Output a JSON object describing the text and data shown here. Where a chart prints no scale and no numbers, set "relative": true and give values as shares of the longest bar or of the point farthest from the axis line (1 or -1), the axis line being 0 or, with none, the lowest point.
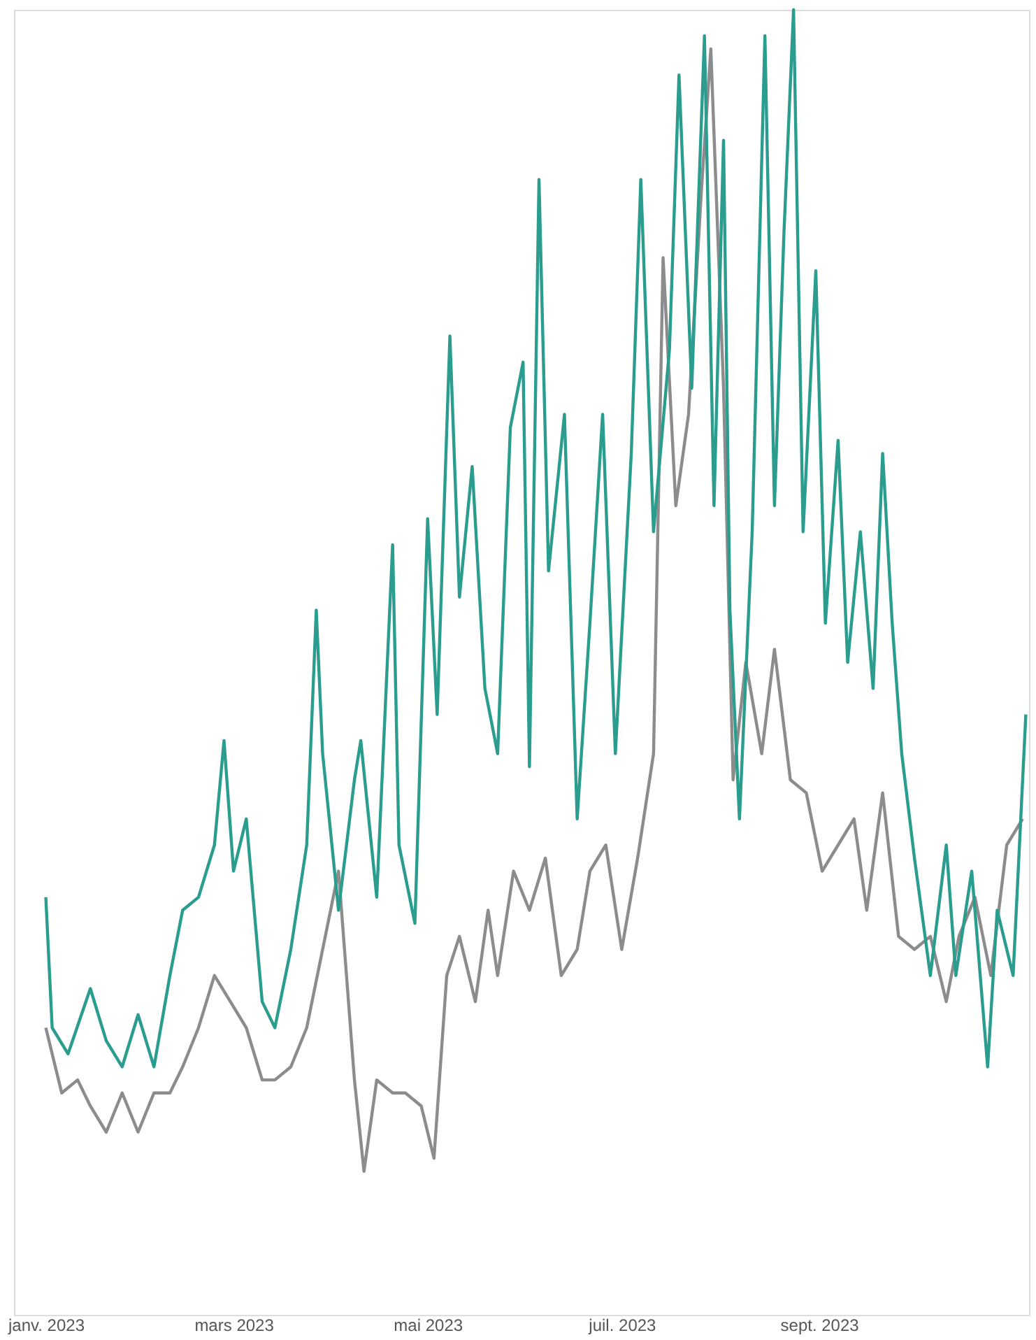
{
  "chart_data": {
    "type": "line",
    "relative": true,
    "line_style": "solid",
    "marker": "none",
    "grid": false,
    "xlim": [
      "2022-12-22",
      "2023-11-06"
    ],
    "xticks": [
      {
        "value": "2023-01-01",
        "label": "janv. 2023"
      },
      {
        "value": "2023-03-01",
        "label": "mars 2023"
      },
      {
        "value": "2023-05-01",
        "label": "mai 2023"
      },
      {
        "value": "2023-07-01",
        "label": "juil. 2023"
      },
      {
        "value": "2023-09-01",
        "label": "sept. 2023"
      }
    ],
    "series": [
      {
        "color": "#8c8c8c",
        "x": [
          "2023-01-01",
          "2023-01-06",
          "2023-01-11",
          "2023-01-15",
          "2023-01-20",
          "2023-01-25",
          "2023-01-30",
          "2023-02-04",
          "2023-02-09",
          "2023-02-13",
          "2023-02-18",
          "2023-02-23",
          "2023-02-28",
          "2023-03-05",
          "2023-03-10",
          "2023-03-14",
          "2023-03-19",
          "2023-03-24",
          "2023-03-29",
          "2023-04-03",
          "2023-04-08",
          "2023-04-11",
          "2023-04-15",
          "2023-04-20",
          "2023-04-24",
          "2023-04-29",
          "2023-05-03",
          "2023-05-07",
          "2023-05-11",
          "2023-05-16",
          "2023-05-20",
          "2023-05-23",
          "2023-05-28",
          "2023-06-02",
          "2023-06-07",
          "2023-06-12",
          "2023-06-17",
          "2023-06-21",
          "2023-06-26",
          "2023-07-01",
          "2023-07-06",
          "2023-07-11",
          "2023-07-14",
          "2023-07-18",
          "2023-07-22",
          "2023-07-26",
          "2023-07-29",
          "2023-08-02",
          "2023-08-05",
          "2023-08-09",
          "2023-08-14",
          "2023-08-18",
          "2023-08-23",
          "2023-08-28",
          "2023-09-02",
          "2023-09-07",
          "2023-09-12",
          "2023-09-16",
          "2023-09-21",
          "2023-09-26",
          "2023-10-01",
          "2023-10-06",
          "2023-10-11",
          "2023-10-15",
          "2023-10-20",
          "2023-10-25",
          "2023-10-30",
          "2023-11-04"
        ],
        "values": [
          0.22,
          0.17,
          0.18,
          0.16,
          0.14,
          0.17,
          0.14,
          0.17,
          0.17,
          0.19,
          0.22,
          0.26,
          0.24,
          0.22,
          0.18,
          0.18,
          0.19,
          0.22,
          0.28,
          0.34,
          0.18,
          0.11,
          0.18,
          0.17,
          0.17,
          0.16,
          0.12,
          0.26,
          0.29,
          0.24,
          0.31,
          0.26,
          0.34,
          0.31,
          0.35,
          0.26,
          0.28,
          0.34,
          0.36,
          0.28,
          0.35,
          0.43,
          0.81,
          0.62,
          0.69,
          0.86,
          0.97,
          0.71,
          0.41,
          0.5,
          0.43,
          0.51,
          0.41,
          0.4,
          0.34,
          0.36,
          0.38,
          0.31,
          0.4,
          0.29,
          0.28,
          0.29,
          0.24,
          0.29,
          0.32,
          0.26,
          0.36,
          0.38
        ]
      },
      {
        "color": "#2a9d8f",
        "x": [
          "2023-01-01",
          "2023-01-03",
          "2023-01-08",
          "2023-01-15",
          "2023-01-20",
          "2023-01-25",
          "2023-01-30",
          "2023-02-04",
          "2023-02-09",
          "2023-02-13",
          "2023-02-18",
          "2023-02-23",
          "2023-02-26",
          "2023-03-01",
          "2023-03-05",
          "2023-03-10",
          "2023-03-14",
          "2023-03-19",
          "2023-03-24",
          "2023-03-27",
          "2023-03-29",
          "2023-04-03",
          "2023-04-08",
          "2023-04-10",
          "2023-04-15",
          "2023-04-20",
          "2023-04-22",
          "2023-04-27",
          "2023-05-01",
          "2023-05-04",
          "2023-05-08",
          "2023-05-11",
          "2023-05-15",
          "2023-05-19",
          "2023-05-23",
          "2023-05-27",
          "2023-05-31",
          "2023-06-02",
          "2023-06-05",
          "2023-06-08",
          "2023-06-13",
          "2023-06-17",
          "2023-06-21",
          "2023-06-25",
          "2023-06-29",
          "2023-07-04",
          "2023-07-07",
          "2023-07-11",
          "2023-07-16",
          "2023-07-19",
          "2023-07-23",
          "2023-07-27",
          "2023-07-30",
          "2023-08-02",
          "2023-08-04",
          "2023-08-07",
          "2023-08-11",
          "2023-08-15",
          "2023-08-18",
          "2023-08-21",
          "2023-08-24",
          "2023-08-27",
          "2023-08-31",
          "2023-09-03",
          "2023-09-07",
          "2023-09-10",
          "2023-09-14",
          "2023-09-18",
          "2023-09-21",
          "2023-09-24",
          "2023-09-27",
          "2023-10-01",
          "2023-10-06",
          "2023-10-11",
          "2023-10-14",
          "2023-10-19",
          "2023-10-24",
          "2023-10-27",
          "2023-11-01",
          "2023-11-05"
        ],
        "values": [
          0.32,
          0.22,
          0.2,
          0.25,
          0.21,
          0.19,
          0.23,
          0.19,
          0.26,
          0.31,
          0.32,
          0.36,
          0.44,
          0.34,
          0.38,
          0.24,
          0.22,
          0.28,
          0.36,
          0.54,
          0.43,
          0.31,
          0.41,
          0.44,
          0.32,
          0.59,
          0.36,
          0.3,
          0.61,
          0.46,
          0.75,
          0.55,
          0.65,
          0.48,
          0.43,
          0.68,
          0.73,
          0.42,
          0.87,
          0.57,
          0.69,
          0.38,
          0.53,
          0.69,
          0.43,
          0.66,
          0.87,
          0.6,
          0.74,
          0.95,
          0.71,
          0.98,
          0.62,
          0.9,
          0.54,
          0.38,
          0.6,
          0.98,
          0.62,
          0.83,
          1.0,
          0.6,
          0.8,
          0.53,
          0.67,
          0.5,
          0.6,
          0.48,
          0.66,
          0.53,
          0.43,
          0.35,
          0.26,
          0.36,
          0.26,
          0.34,
          0.19,
          0.31,
          0.26,
          0.46
        ]
      }
    ]
  }
}
